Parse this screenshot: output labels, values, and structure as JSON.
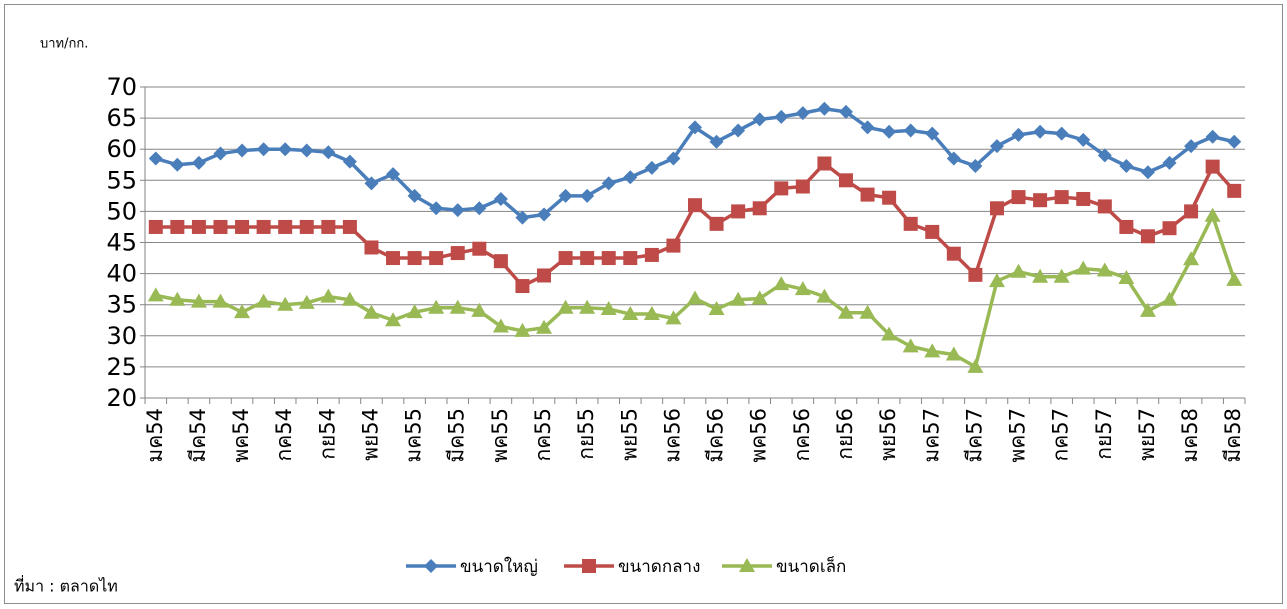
{
  "chart_data": {
    "type": "line",
    "ylabel": "บาท/กก.",
    "source": "ที่มา : ตลาดไท",
    "categories": [
      "มค54",
      null,
      "มีค54",
      null,
      "พค54",
      null,
      "กค54",
      null,
      "กย54",
      null,
      "พย54",
      null,
      "มค55",
      null,
      "มีค55",
      null,
      "พค55",
      null,
      "กค55",
      null,
      "กย55",
      null,
      "พย55",
      null,
      "มค56",
      null,
      "มีค56",
      null,
      "พค56",
      null,
      "กค56",
      null,
      "กย56",
      null,
      "พย56",
      null,
      "มค57",
      null,
      "มีค57",
      null,
      "พค57",
      null,
      "กค57",
      null,
      "กย57",
      null,
      "พย57",
      null,
      "มค58",
      null,
      "มีค58"
    ],
    "series": [
      {
        "name": "ขนาดใหญ่",
        "color": "#4a7ebb",
        "marker": "diamond",
        "values": [
          58.5,
          57.5,
          57.8,
          59.3,
          59.8,
          60,
          60,
          59.8,
          59.5,
          58,
          54.5,
          56,
          52.5,
          50.5,
          50.2,
          50.5,
          52,
          49,
          49.5,
          52.5,
          52.5,
          54.5,
          55.5,
          57,
          58.5,
          63.5,
          61.2,
          63,
          64.8,
          65.2,
          65.8,
          66.5,
          66,
          63.5,
          62.8,
          63,
          62.5,
          58.5,
          57.3,
          60.5,
          62.3,
          62.8,
          62.5,
          61.5,
          59,
          57.3,
          56.3,
          57.8,
          60.5,
          62,
          61.2
        ]
      },
      {
        "name": "ขนาดกลาง",
        "color": "#be4b48",
        "marker": "square",
        "values": [
          47.5,
          47.5,
          47.5,
          47.5,
          47.5,
          47.5,
          47.5,
          47.5,
          47.5,
          47.5,
          44.2,
          42.5,
          42.5,
          42.5,
          43.3,
          44,
          42,
          38,
          39.7,
          42.5,
          42.5,
          42.5,
          42.5,
          43,
          44.5,
          51,
          48,
          50,
          50.5,
          53.7,
          54,
          57.7,
          55,
          52.7,
          52.2,
          48,
          46.7,
          43.2,
          39.8,
          50.5,
          52.3,
          51.8,
          52.3,
          52,
          50.8,
          47.5,
          46,
          47.3,
          50,
          57.2,
          53.3
        ]
      },
      {
        "name": "ขนาดเล็ก",
        "color": "#98b954",
        "marker": "triangle",
        "values": [
          36.5,
          35.8,
          35.5,
          35.5,
          33.8,
          35.5,
          35,
          35.3,
          36.3,
          35.8,
          33.7,
          32.5,
          33.8,
          34.5,
          34.5,
          34,
          31.5,
          30.8,
          31.3,
          34.5,
          34.5,
          34.3,
          33.5,
          33.5,
          32.8,
          36,
          34.3,
          35.8,
          36,
          38.3,
          37.5,
          36.3,
          33.7,
          33.7,
          30.2,
          28.3,
          27.5,
          27,
          25,
          38.8,
          40.3,
          39.5,
          39.5,
          40.8,
          40.5,
          39.3,
          34,
          35.8,
          42.3,
          49.3,
          39
        ]
      }
    ],
    "ylim": [
      20,
      70
    ],
    "yticks": [
      20,
      25,
      30,
      35,
      40,
      45,
      50,
      55,
      60,
      65,
      70
    ],
    "grid": true,
    "legend": "bottom"
  }
}
